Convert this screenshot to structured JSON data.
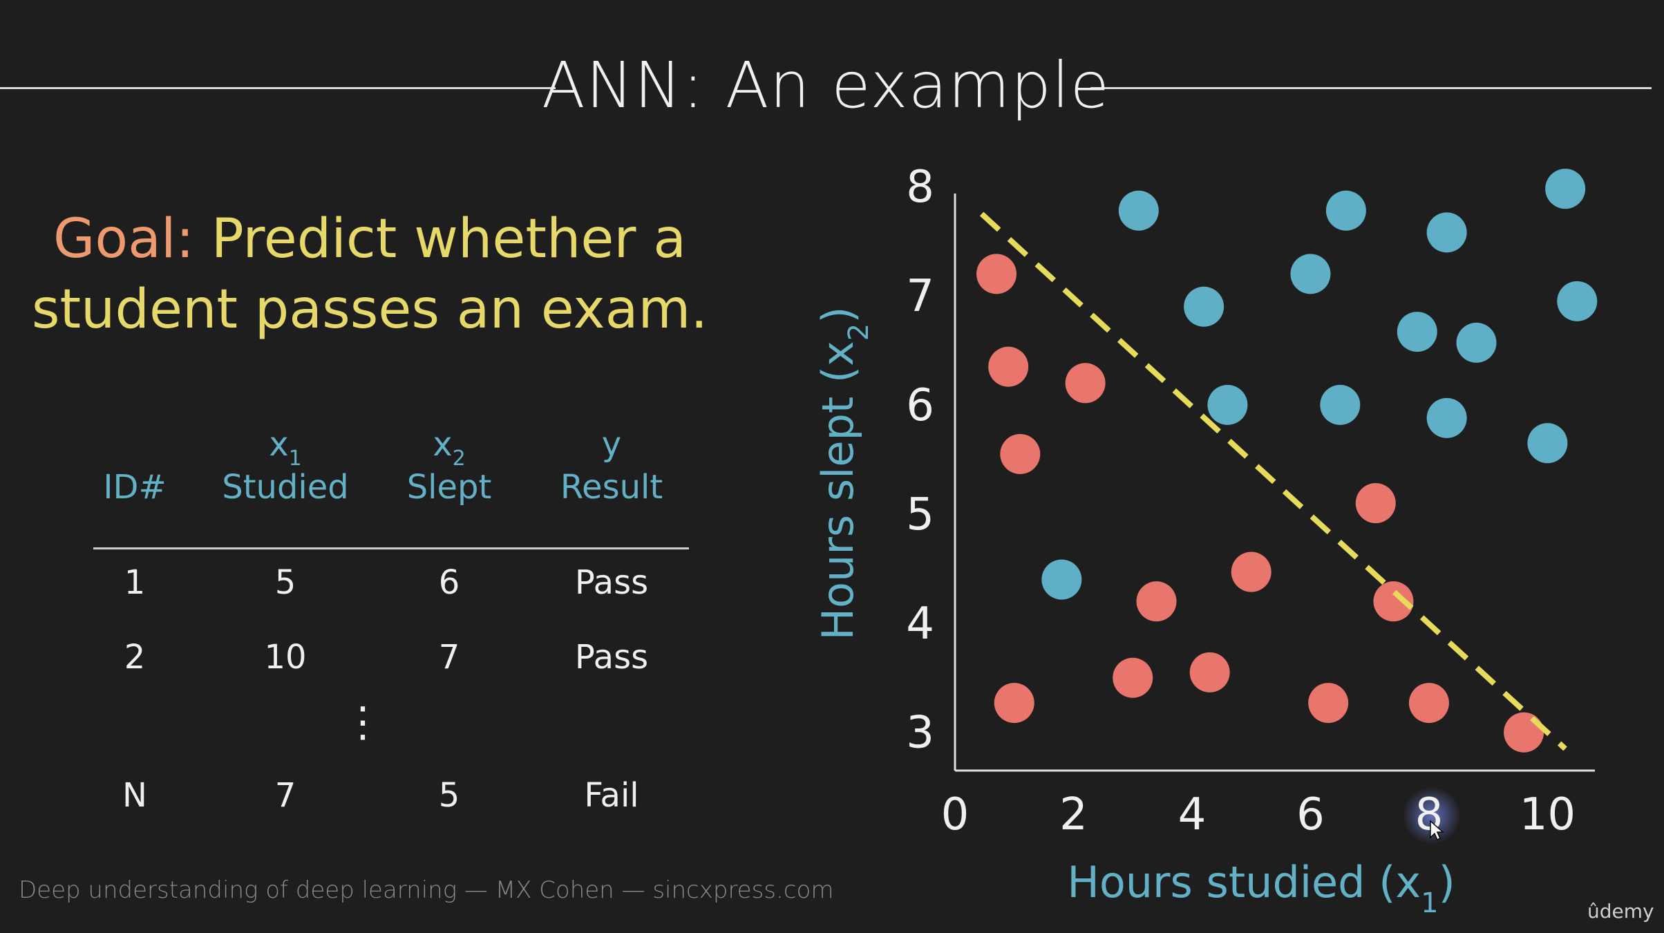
{
  "slide": {
    "title": "ANN: An example",
    "goal_word": "Goal:",
    "goal_text_line1": "Predict whether a",
    "goal_text_line2": "student passes an exam.",
    "footer": "Deep understanding of deep learning — MX Cohen — sincxpress.com",
    "brand": "ûdemy"
  },
  "table": {
    "headers": [
      {
        "top": "",
        "sub": "",
        "label": "ID#"
      },
      {
        "top": "x",
        "sub": "1",
        "label": "Studied"
      },
      {
        "top": "x",
        "sub": "2",
        "label": "Slept"
      },
      {
        "top": "y",
        "sub": "",
        "label": "Result"
      }
    ],
    "rows": [
      [
        "1",
        "5",
        "6",
        "Pass"
      ],
      [
        "2",
        "10",
        "7",
        "Pass"
      ],
      [
        "N",
        "7",
        "5",
        "Fail"
      ]
    ],
    "ellipsis": "⋮"
  },
  "chart_data": {
    "type": "scatter",
    "xlabel": "Hours studied (x",
    "xlabel_sub": "1",
    "ylabel": "Hours slept (x",
    "ylabel_sub": "2",
    "xlim": [
      0,
      10.8
    ],
    "ylim": [
      2.65,
      8.0
    ],
    "xticks": [
      0,
      2,
      4,
      6,
      8,
      10
    ],
    "yticks": [
      3,
      4,
      5,
      6,
      7,
      8
    ],
    "series": [
      {
        "color": "#5fafc6",
        "points": [
          [
            3.1,
            7.78
          ],
          [
            6.6,
            7.78
          ],
          [
            8.3,
            7.58
          ],
          [
            10.3,
            7.98
          ],
          [
            6.0,
            7.2
          ],
          [
            4.2,
            6.9
          ],
          [
            10.5,
            6.95
          ],
          [
            7.8,
            6.67
          ],
          [
            8.8,
            6.57
          ],
          [
            4.6,
            6.0
          ],
          [
            6.5,
            6.0
          ],
          [
            8.3,
            5.88
          ],
          [
            10.0,
            5.65
          ],
          [
            1.8,
            4.4
          ]
        ]
      },
      {
        "color": "#e8766c",
        "points": [
          [
            0.7,
            7.2
          ],
          [
            0.9,
            6.35
          ],
          [
            2.2,
            6.2
          ],
          [
            1.1,
            5.55
          ],
          [
            7.1,
            5.1
          ],
          [
            5.0,
            4.47
          ],
          [
            3.4,
            4.2
          ],
          [
            7.4,
            4.2
          ],
          [
            1.0,
            3.27
          ],
          [
            3.0,
            3.5
          ],
          [
            4.3,
            3.55
          ],
          [
            6.3,
            3.27
          ],
          [
            8.0,
            3.27
          ],
          [
            9.6,
            3.0
          ]
        ]
      }
    ],
    "decision_line": {
      "color": "#e6dc5a",
      "from": [
        0.45,
        7.75
      ],
      "to": [
        10.3,
        2.85
      ]
    },
    "cursor_highlight_tick": 8
  }
}
